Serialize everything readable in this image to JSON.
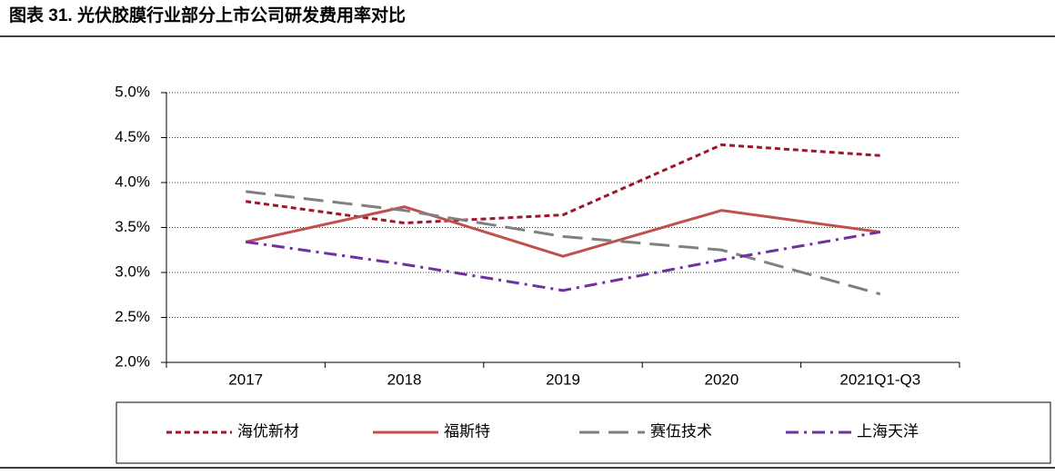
{
  "chart_data": {
    "type": "line",
    "title": "图表 31. 光伏胶膜行业部分上市公司研发费用率对比",
    "categories": [
      "2017",
      "2018",
      "2019",
      "2020",
      "2021Q1-Q3"
    ],
    "ylim": [
      2,
      5
    ],
    "yticks": [
      {
        "value": 2,
        "label": "2.0%"
      },
      {
        "value": 2.5,
        "label": "2.5%"
      },
      {
        "value": 3,
        "label": "3.0%"
      },
      {
        "value": 3.5,
        "label": "3.5%"
      },
      {
        "value": 4,
        "label": "4.0%"
      },
      {
        "value": 4.5,
        "label": "4.5%"
      },
      {
        "value": 5,
        "label": "5.0%"
      }
    ],
    "grid": true,
    "series": [
      {
        "name": "海优新材",
        "color": "#a0152b",
        "dash": "6,4",
        "values": [
          3.79,
          3.55,
          3.64,
          4.42,
          4.3
        ]
      },
      {
        "name": "福斯特",
        "color": "#c0504d",
        "dash": "none",
        "values": [
          3.34,
          3.73,
          3.18,
          3.69,
          3.45
        ]
      },
      {
        "name": "赛伍技术",
        "color": "#808080",
        "dash": "22,10",
        "values": [
          3.9,
          3.69,
          3.4,
          3.25,
          2.76
        ]
      },
      {
        "name": "上海天洋",
        "color": "#7030a0",
        "dash": "14,6,3,6",
        "values": [
          3.34,
          3.09,
          2.8,
          3.14,
          3.45
        ]
      }
    ]
  }
}
